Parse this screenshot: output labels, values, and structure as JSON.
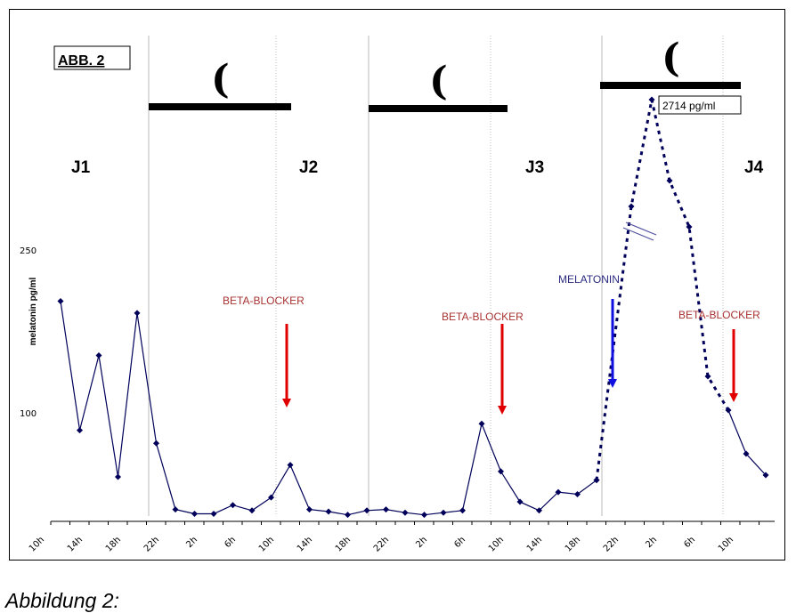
{
  "figure": {
    "label": "ABB. 2",
    "caption": "Abbildung 2:"
  },
  "chart_data": {
    "type": "line",
    "ylabel": "melatonin pg/ml",
    "y_ticks": [
      {
        "value": 100,
        "label": "100"
      },
      {
        "value": 250,
        "label": "250"
      }
    ],
    "x_tick_labels": [
      "10h",
      "14h",
      "18h",
      "22h",
      "2h",
      "6h",
      "10h",
      "14h",
      "18h",
      "22h",
      "2h",
      "6h",
      "10h",
      "14h",
      "18h",
      "22h",
      "2h",
      "6h",
      "10h"
    ],
    "day_labels": [
      "J1",
      "J2",
      "J3",
      "J4"
    ],
    "night_markers": [
      "(",
      "(",
      "("
    ],
    "peak_label": "2714 pg/ml",
    "series": [
      {
        "style": "solid",
        "values": [
          203,
          84,
          153,
          41,
          192,
          72,
          11,
          7,
          7,
          15,
          10,
          22,
          52,
          11,
          9,
          6,
          10,
          11,
          8,
          6,
          8,
          10,
          90,
          46,
          18,
          10,
          27,
          25,
          38
        ]
      },
      {
        "style": "dotted",
        "values": [
          38,
          330,
          2714,
          350,
          320,
          117,
          80
        ]
      }
    ],
    "annotations": [
      {
        "text": "BETA-BLOCKER",
        "color": "#a83232"
      },
      {
        "text": "BETA-BLOCKER",
        "color": "#a83232"
      },
      {
        "text": "MELATONIN",
        "color": "#2a2a80"
      },
      {
        "text": "BETA-BLOCKER",
        "color": "#a83232"
      }
    ],
    "arrow_colors": {
      "beta_blocker": "#e00000",
      "melatonin": "#1010e0"
    },
    "line_color": "#00005a",
    "grid": false
  }
}
